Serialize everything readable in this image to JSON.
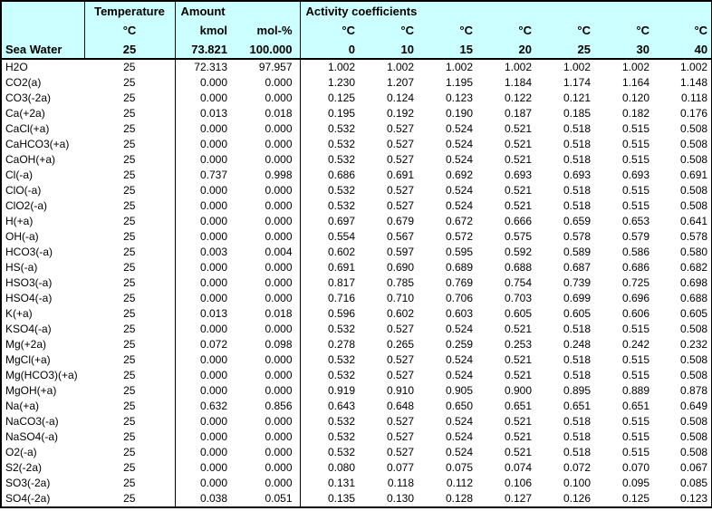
{
  "table": {
    "row_label": "Sea Water",
    "temperature": {
      "title": "Temperature",
      "unit": "°C",
      "value": "25"
    },
    "amount": {
      "title": "Amount",
      "kmol_label": "kmol",
      "molpct_label": "mol-%",
      "kmol_total": "73.821",
      "molpct_total": "100.000"
    },
    "activity": {
      "title": "Activity coefficients",
      "unit": "°C",
      "temperatures": [
        "0",
        "10",
        "15",
        "20",
        "25",
        "30",
        "40"
      ]
    },
    "rows": [
      {
        "species": "H2O",
        "temp": "25",
        "kmol": "72.313",
        "molpct": "97.957",
        "coeffs": [
          "1.002",
          "1.002",
          "1.002",
          "1.002",
          "1.002",
          "1.002",
          "1.002"
        ]
      },
      {
        "species": "CO2(a)",
        "temp": "25",
        "kmol": "0.000",
        "molpct": "0.000",
        "coeffs": [
          "1.230",
          "1.207",
          "1.195",
          "1.184",
          "1.174",
          "1.164",
          "1.148"
        ]
      },
      {
        "species": "CO3(-2a)",
        "temp": "25",
        "kmol": "0.000",
        "molpct": "0.000",
        "coeffs": [
          "0.125",
          "0.124",
          "0.123",
          "0.122",
          "0.121",
          "0.120",
          "0.118"
        ]
      },
      {
        "species": "Ca(+2a)",
        "temp": "25",
        "kmol": "0.013",
        "molpct": "0.018",
        "coeffs": [
          "0.195",
          "0.192",
          "0.190",
          "0.187",
          "0.185",
          "0.182",
          "0.176"
        ]
      },
      {
        "species": "CaCl(+a)",
        "temp": "25",
        "kmol": "0.000",
        "molpct": "0.000",
        "coeffs": [
          "0.532",
          "0.527",
          "0.524",
          "0.521",
          "0.518",
          "0.515",
          "0.508"
        ]
      },
      {
        "species": "CaHCO3(+a)",
        "temp": "25",
        "kmol": "0.000",
        "molpct": "0.000",
        "coeffs": [
          "0.532",
          "0.527",
          "0.524",
          "0.521",
          "0.518",
          "0.515",
          "0.508"
        ]
      },
      {
        "species": "CaOH(+a)",
        "temp": "25",
        "kmol": "0.000",
        "molpct": "0.000",
        "coeffs": [
          "0.532",
          "0.527",
          "0.524",
          "0.521",
          "0.518",
          "0.515",
          "0.508"
        ]
      },
      {
        "species": "Cl(-a)",
        "temp": "25",
        "kmol": "0.737",
        "molpct": "0.998",
        "coeffs": [
          "0.686",
          "0.691",
          "0.692",
          "0.693",
          "0.693",
          "0.693",
          "0.691"
        ]
      },
      {
        "species": "ClO(-a)",
        "temp": "25",
        "kmol": "0.000",
        "molpct": "0.000",
        "coeffs": [
          "0.532",
          "0.527",
          "0.524",
          "0.521",
          "0.518",
          "0.515",
          "0.508"
        ]
      },
      {
        "species": "ClO2(-a)",
        "temp": "25",
        "kmol": "0.000",
        "molpct": "0.000",
        "coeffs": [
          "0.532",
          "0.527",
          "0.524",
          "0.521",
          "0.518",
          "0.515",
          "0.508"
        ]
      },
      {
        "species": "H(+a)",
        "temp": "25",
        "kmol": "0.000",
        "molpct": "0.000",
        "coeffs": [
          "0.697",
          "0.679",
          "0.672",
          "0.666",
          "0.659",
          "0.653",
          "0.641"
        ]
      },
      {
        "species": "OH(-a)",
        "temp": "25",
        "kmol": "0.000",
        "molpct": "0.000",
        "coeffs": [
          "0.554",
          "0.567",
          "0.572",
          "0.575",
          "0.578",
          "0.579",
          "0.578"
        ]
      },
      {
        "species": "HCO3(-a)",
        "temp": "25",
        "kmol": "0.003",
        "molpct": "0.004",
        "coeffs": [
          "0.602",
          "0.597",
          "0.595",
          "0.592",
          "0.589",
          "0.586",
          "0.580"
        ]
      },
      {
        "species": "HS(-a)",
        "temp": "25",
        "kmol": "0.000",
        "molpct": "0.000",
        "coeffs": [
          "0.691",
          "0.690",
          "0.689",
          "0.688",
          "0.687",
          "0.686",
          "0.682"
        ]
      },
      {
        "species": "HSO3(-a)",
        "temp": "25",
        "kmol": "0.000",
        "molpct": "0.000",
        "coeffs": [
          "0.817",
          "0.785",
          "0.769",
          "0.754",
          "0.739",
          "0.725",
          "0.698"
        ]
      },
      {
        "species": "HSO4(-a)",
        "temp": "25",
        "kmol": "0.000",
        "molpct": "0.000",
        "coeffs": [
          "0.716",
          "0.710",
          "0.706",
          "0.703",
          "0.699",
          "0.696",
          "0.688"
        ]
      },
      {
        "species": "K(+a)",
        "temp": "25",
        "kmol": "0.013",
        "molpct": "0.018",
        "coeffs": [
          "0.596",
          "0.602",
          "0.603",
          "0.605",
          "0.605",
          "0.606",
          "0.605"
        ]
      },
      {
        "species": "KSO4(-a)",
        "temp": "25",
        "kmol": "0.000",
        "molpct": "0.000",
        "coeffs": [
          "0.532",
          "0.527",
          "0.524",
          "0.521",
          "0.518",
          "0.515",
          "0.508"
        ]
      },
      {
        "species": "Mg(+2a)",
        "temp": "25",
        "kmol": "0.072",
        "molpct": "0.098",
        "coeffs": [
          "0.278",
          "0.265",
          "0.259",
          "0.253",
          "0.248",
          "0.242",
          "0.232"
        ]
      },
      {
        "species": "MgCl(+a)",
        "temp": "25",
        "kmol": "0.000",
        "molpct": "0.000",
        "coeffs": [
          "0.532",
          "0.527",
          "0.524",
          "0.521",
          "0.518",
          "0.515",
          "0.508"
        ]
      },
      {
        "species": "Mg(HCO3)(+a)",
        "temp": "25",
        "kmol": "0.000",
        "molpct": "0.000",
        "coeffs": [
          "0.532",
          "0.527",
          "0.524",
          "0.521",
          "0.518",
          "0.515",
          "0.508"
        ]
      },
      {
        "species": "MgOH(+a)",
        "temp": "25",
        "kmol": "0.000",
        "molpct": "0.000",
        "coeffs": [
          "0.919",
          "0.910",
          "0.905",
          "0.900",
          "0.895",
          "0.889",
          "0.878"
        ]
      },
      {
        "species": "Na(+a)",
        "temp": "25",
        "kmol": "0.632",
        "molpct": "0.856",
        "coeffs": [
          "0.643",
          "0.648",
          "0.650",
          "0.651",
          "0.651",
          "0.651",
          "0.649"
        ]
      },
      {
        "species": "NaCO3(-a)",
        "temp": "25",
        "kmol": "0.000",
        "molpct": "0.000",
        "coeffs": [
          "0.532",
          "0.527",
          "0.524",
          "0.521",
          "0.518",
          "0.515",
          "0.508"
        ]
      },
      {
        "species": "NaSO4(-a)",
        "temp": "25",
        "kmol": "0.000",
        "molpct": "0.000",
        "coeffs": [
          "0.532",
          "0.527",
          "0.524",
          "0.521",
          "0.518",
          "0.515",
          "0.508"
        ]
      },
      {
        "species": "O2(-a)",
        "temp": "25",
        "kmol": "0.000",
        "molpct": "0.000",
        "coeffs": [
          "0.532",
          "0.527",
          "0.524",
          "0.521",
          "0.518",
          "0.515",
          "0.508"
        ]
      },
      {
        "species": "S2(-2a)",
        "temp": "25",
        "kmol": "0.000",
        "molpct": "0.000",
        "coeffs": [
          "0.080",
          "0.077",
          "0.075",
          "0.074",
          "0.072",
          "0.070",
          "0.067"
        ]
      },
      {
        "species": "SO3(-2a)",
        "temp": "25",
        "kmol": "0.000",
        "molpct": "0.000",
        "coeffs": [
          "0.131",
          "0.118",
          "0.112",
          "0.106",
          "0.100",
          "0.095",
          "0.085"
        ]
      },
      {
        "species": "SO4(-2a)",
        "temp": "25",
        "kmol": "0.038",
        "molpct": "0.051",
        "coeffs": [
          "0.135",
          "0.130",
          "0.128",
          "0.127",
          "0.126",
          "0.125",
          "0.123"
        ]
      }
    ]
  },
  "colors": {
    "header_bg": "#CCFFFF",
    "border": "#000000",
    "text": "#000000",
    "background": "#FFFFFF"
  }
}
